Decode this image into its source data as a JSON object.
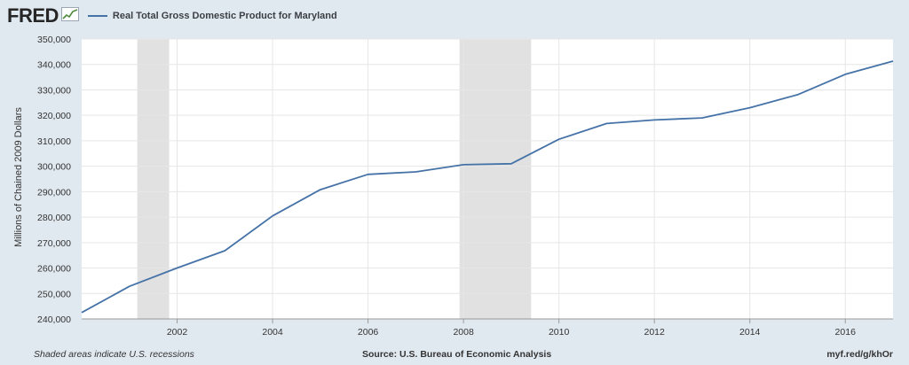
{
  "brand": {
    "logo_text": "FRED",
    "logo_icon": "chart-trend-icon"
  },
  "footer": {
    "recession_note": "Shaded areas indicate U.S. recessions",
    "source": "Source: U.S. Bureau of Economic Analysis",
    "short_url": "myf.red/g/khOr"
  },
  "chart_data": {
    "type": "line",
    "title": "",
    "xlabel": "",
    "ylabel": "Millions of Chained 2009 Dollars",
    "legend_position": "top-left",
    "grid": true,
    "line_color": "#4572a7",
    "recession_color": "#e1e1e1",
    "xlim": [
      2000,
      2017
    ],
    "ylim": [
      240000,
      350000
    ],
    "x_ticks": [
      2002,
      2004,
      2006,
      2008,
      2010,
      2012,
      2014,
      2016
    ],
    "y_ticks": [
      240000,
      250000,
      260000,
      270000,
      280000,
      290000,
      300000,
      310000,
      320000,
      330000,
      340000,
      350000
    ],
    "y_tick_labels": [
      "240,000",
      "250,000",
      "260,000",
      "270,000",
      "280,000",
      "290,000",
      "300,000",
      "310,000",
      "320,000",
      "330,000",
      "340,000",
      "350,000"
    ],
    "recessions": [
      {
        "start": "2001-03",
        "end": "2001-11"
      },
      {
        "start": "2007-12",
        "end": "2009-06"
      }
    ],
    "series": [
      {
        "name": "Real Total Gross Domestic Product for Maryland",
        "x": [
          2000,
          2001,
          2002,
          2003,
          2004,
          2005,
          2006,
          2007,
          2008,
          2009,
          2010,
          2011,
          2012,
          2013,
          2014,
          2015,
          2016,
          2017
        ],
        "values": [
          242500,
          252800,
          260000,
          266800,
          280500,
          290800,
          296800,
          297800,
          300600,
          301000,
          310600,
          316800,
          318200,
          319000,
          323000,
          328100,
          336100,
          341300
        ]
      }
    ]
  }
}
